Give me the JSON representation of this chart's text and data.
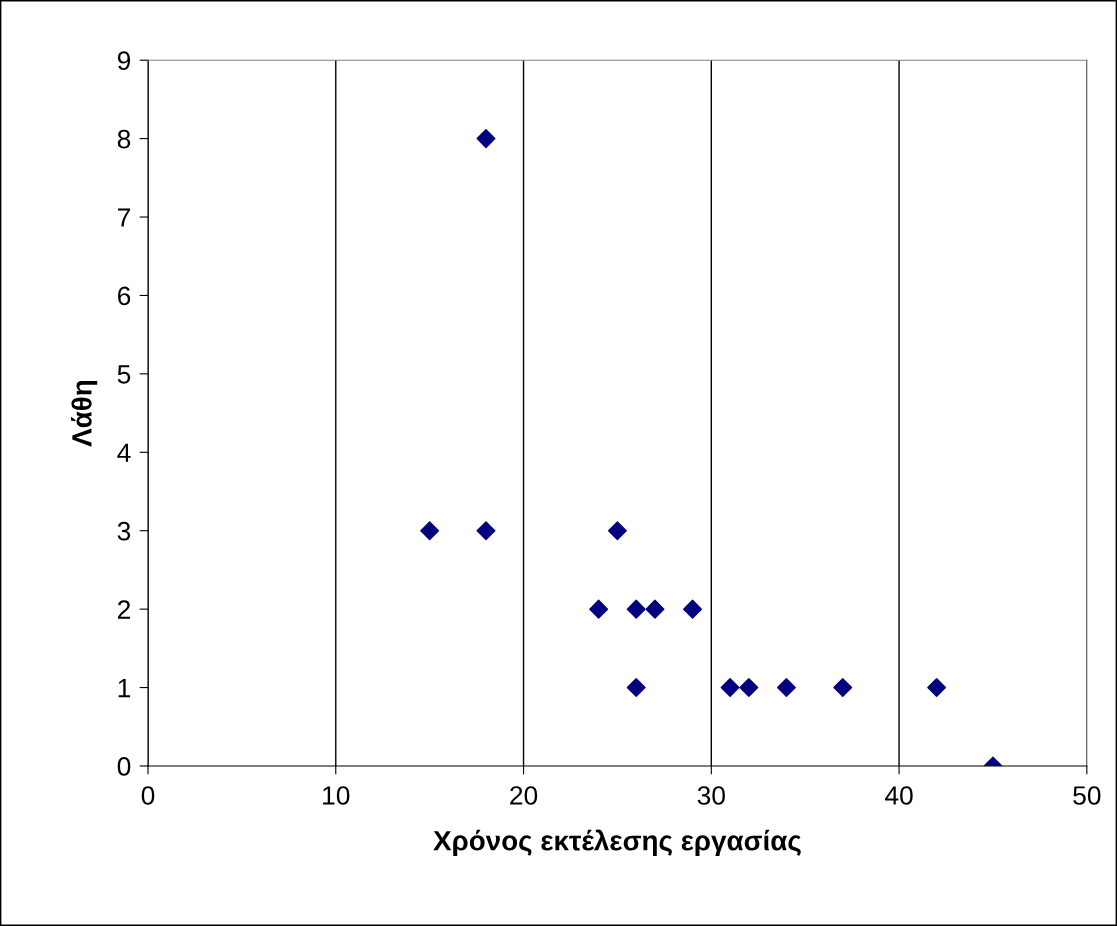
{
  "chart_data": {
    "type": "scatter",
    "xlabel": "Χρόνος εκτέλεσης εργασίας",
    "ylabel": "Λάθη",
    "series": [
      {
        "color": "#000080",
        "x": [
          18,
          15,
          18,
          25,
          24,
          26,
          27,
          29,
          26,
          31,
          32,
          34,
          37,
          42,
          45
        ],
        "values": [
          8,
          3,
          3,
          3,
          2,
          2,
          2,
          2,
          1,
          1,
          1,
          1,
          1,
          1,
          0
        ]
      }
    ],
    "xlim": [
      0,
      50
    ],
    "xticks": [
      0,
      10,
      20,
      30,
      40,
      50
    ],
    "ylim": [
      0,
      9
    ],
    "yticks": [
      0,
      1,
      2,
      3,
      4,
      5,
      6,
      7,
      8,
      9
    ],
    "grid": "x",
    "marker": "diamond",
    "legend": false
  }
}
